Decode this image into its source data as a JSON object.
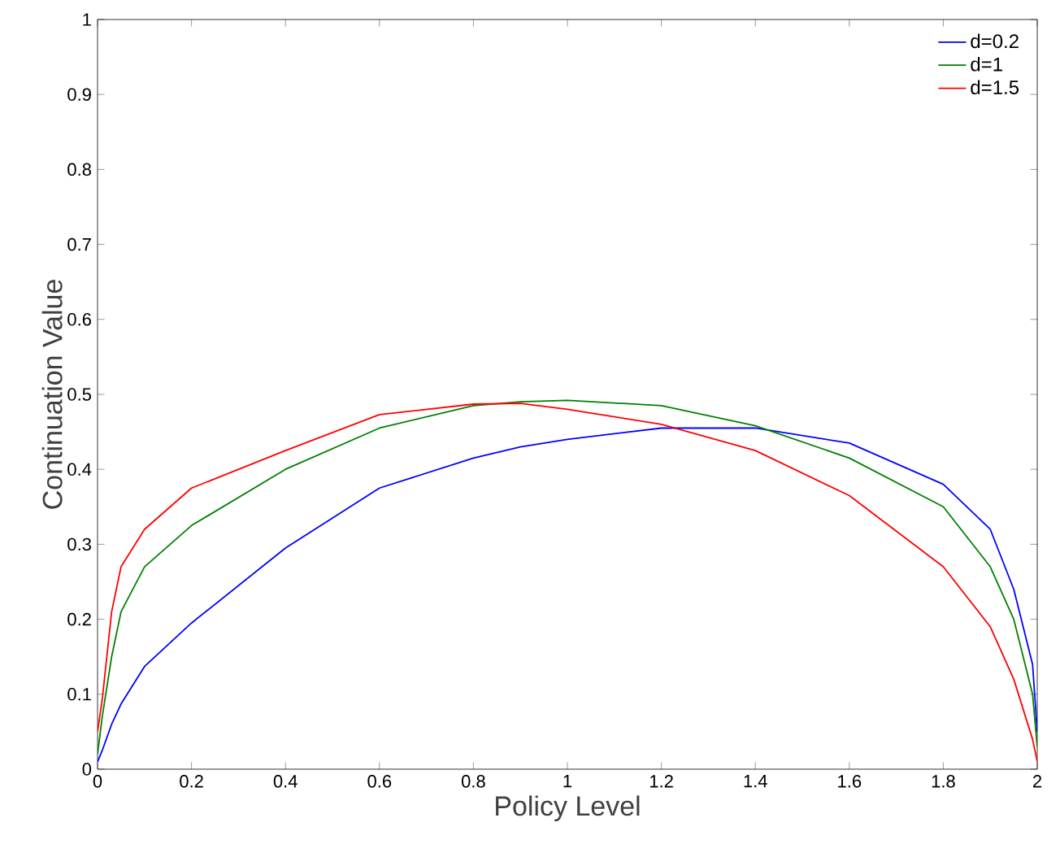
{
  "chart_data": {
    "type": "line",
    "xlabel": "Policy Level",
    "ylabel": "Continuation Value",
    "xlim": [
      0,
      2
    ],
    "ylim": [
      0,
      1
    ],
    "xticks": [
      0,
      0.2,
      0.4,
      0.6,
      0.8,
      1,
      1.2,
      1.4,
      1.6,
      1.8,
      2
    ],
    "yticks": [
      0,
      0.1,
      0.2,
      0.3,
      0.4,
      0.5,
      0.6,
      0.7,
      0.8,
      0.9,
      1
    ],
    "grid": false,
    "legend": "top right",
    "marker": "none",
    "line_style": "solid",
    "x": [
      0,
      0.01,
      0.03,
      0.05,
      0.1,
      0.2,
      0.4,
      0.6,
      0.8,
      0.9,
      1,
      1.2,
      1.4,
      1.6,
      1.8,
      1.9,
      1.95,
      1.99,
      2
    ],
    "series": [
      {
        "name": "d=0.2",
        "color": "#0000ff",
        "values": [
          0.01,
          0.025,
          0.06,
          0.087,
          0.137,
          0.195,
          0.295,
          0.375,
          0.415,
          0.43,
          0.44,
          0.455,
          0.455,
          0.435,
          0.38,
          0.32,
          0.24,
          0.14,
          0.05
        ]
      },
      {
        "name": "d=1",
        "color": "#008000",
        "values": [
          0.02,
          0.07,
          0.15,
          0.21,
          0.27,
          0.325,
          0.4,
          0.455,
          0.485,
          0.49,
          0.492,
          0.485,
          0.458,
          0.415,
          0.35,
          0.27,
          0.2,
          0.1,
          0.03
        ]
      },
      {
        "name": "d=1.5",
        "color": "#ff0000",
        "values": [
          0.05,
          0.093,
          0.21,
          0.27,
          0.32,
          0.375,
          0.425,
          0.473,
          0.487,
          0.488,
          0.48,
          0.46,
          0.425,
          0.365,
          0.27,
          0.19,
          0.12,
          0.04,
          0.01
        ]
      }
    ]
  }
}
